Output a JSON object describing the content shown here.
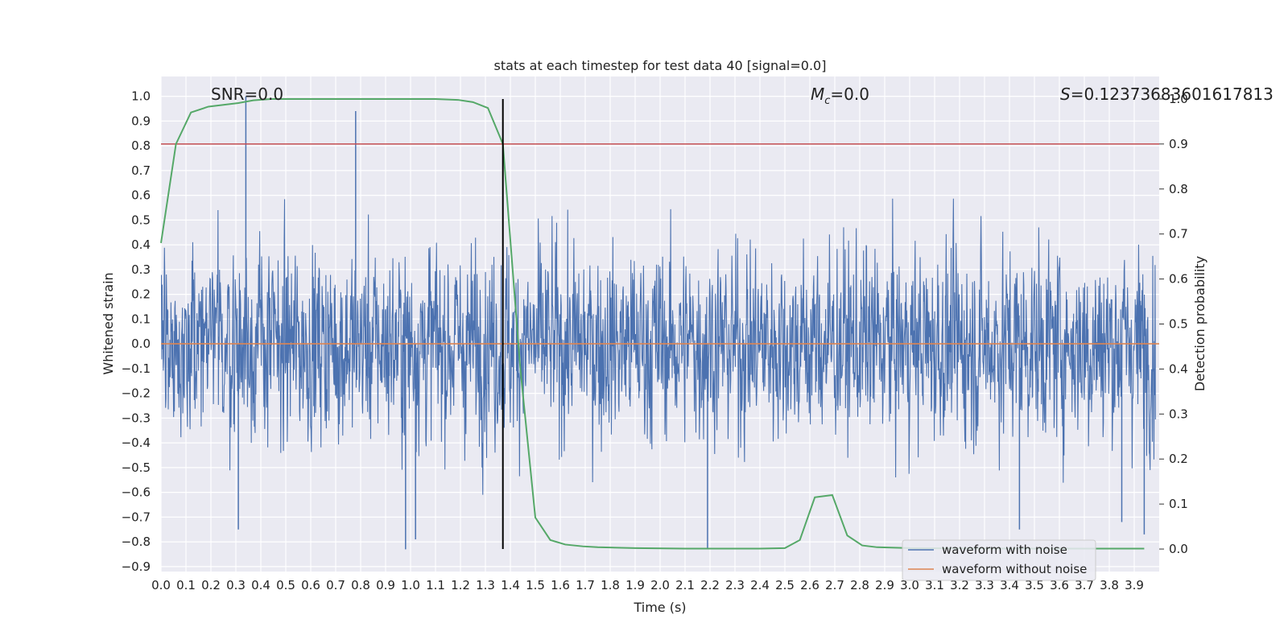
{
  "chart_data": {
    "type": "line",
    "title": "stats at each timestep for test data 40 [signal=0.0]",
    "xlabel": "Time (s)",
    "ylabel_left": "Whitened strain",
    "ylabel_right": "Detection probability",
    "xlim": [
      0.0,
      4.0
    ],
    "ylim_left": [
      -0.92,
      1.08
    ],
    "ylim_right": [
      -0.05,
      1.05
    ],
    "grid": true,
    "x_ticks": [
      "0.0",
      "0.1",
      "0.2",
      "0.3",
      "0.4",
      "0.5",
      "0.6",
      "0.7",
      "0.8",
      "0.9",
      "1.0",
      "1.1",
      "1.2",
      "1.3",
      "1.4",
      "1.5",
      "1.6",
      "1.7",
      "1.8",
      "1.9",
      "2.0",
      "2.1",
      "2.2",
      "2.3",
      "2.4",
      "2.5",
      "2.6",
      "2.7",
      "2.8",
      "2.9",
      "3.0",
      "3.1",
      "3.2",
      "3.3",
      "3.4",
      "3.5",
      "3.6",
      "3.7",
      "3.8",
      "3.9"
    ],
    "y_ticks_left": [
      "1.0",
      "0.9",
      "0.8",
      "0.7",
      "0.6",
      "0.5",
      "0.4",
      "0.3",
      "0.2",
      "0.1",
      "0.0",
      "−0.1",
      "−0.2",
      "−0.3",
      "−0.4",
      "−0.5",
      "−0.6",
      "−0.7",
      "−0.8",
      "−0.9"
    ],
    "y_ticks_right": [
      "1.0",
      "0.9",
      "0.8",
      "0.7",
      "0.6",
      "0.5",
      "0.4",
      "0.3",
      "0.2",
      "0.1",
      "0.0"
    ],
    "annotations": {
      "snr": "SNR=0.0",
      "mc_symbol": "M",
      "mc_subscript": "c",
      "mc_value": "=0.0",
      "s_symbol": "S",
      "s_value": "=0.12373683601617813"
    },
    "series": [
      {
        "name": "waveform with noise",
        "axis": "left",
        "color": "#4c72b0",
        "note": "dense whitened noise, roughly within -0.85 to 1.0",
        "spikes": [
          [
            0.34,
            1.0
          ],
          [
            0.78,
            0.94
          ],
          [
            0.98,
            -0.83
          ],
          [
            1.02,
            -0.79
          ],
          [
            0.31,
            -0.75
          ],
          [
            2.19,
            -0.83
          ],
          [
            3.44,
            -0.75
          ],
          [
            3.94,
            -0.77
          ],
          [
            3.85,
            -0.72
          ]
        ]
      },
      {
        "name": "waveform without noise",
        "axis": "left",
        "color": "#dd8452",
        "x": [
          0.0,
          4.0
        ],
        "y": [
          0.0,
          0.0
        ]
      },
      {
        "name": "detection probability",
        "axis": "right",
        "color": "#55a868",
        "x": [
          0.0,
          0.06,
          0.12,
          0.19,
          0.25,
          0.31,
          0.37,
          0.44,
          0.5,
          0.6,
          0.8,
          1.0,
          1.1,
          1.19,
          1.25,
          1.31,
          1.37,
          1.44,
          1.5,
          1.56,
          1.62,
          1.69,
          1.75,
          1.9,
          2.1,
          2.4,
          2.5,
          2.56,
          2.62,
          2.69,
          2.75,
          2.81,
          2.87,
          3.0,
          3.5,
          3.94
        ],
        "y": [
          0.68,
          0.9,
          0.97,
          0.983,
          0.987,
          0.991,
          0.997,
          1.0,
          1.0,
          1.0,
          1.0,
          1.0,
          1.0,
          0.998,
          0.993,
          0.98,
          0.9,
          0.4,
          0.07,
          0.02,
          0.01,
          0.006,
          0.004,
          0.002,
          0.001,
          0.001,
          0.002,
          0.02,
          0.115,
          0.12,
          0.03,
          0.008,
          0.004,
          0.002,
          0.001,
          0.001
        ]
      }
    ],
    "threshold": {
      "axis": "right",
      "value": 0.9,
      "color": "#c44e52"
    },
    "marker_line": {
      "x": 1.37,
      "color": "#000000"
    },
    "legend": {
      "position": "lower-right",
      "entries": [
        {
          "label": "waveform with noise",
          "color": "#4c72b0"
        },
        {
          "label": "waveform without noise",
          "color": "#dd8452"
        }
      ]
    }
  }
}
